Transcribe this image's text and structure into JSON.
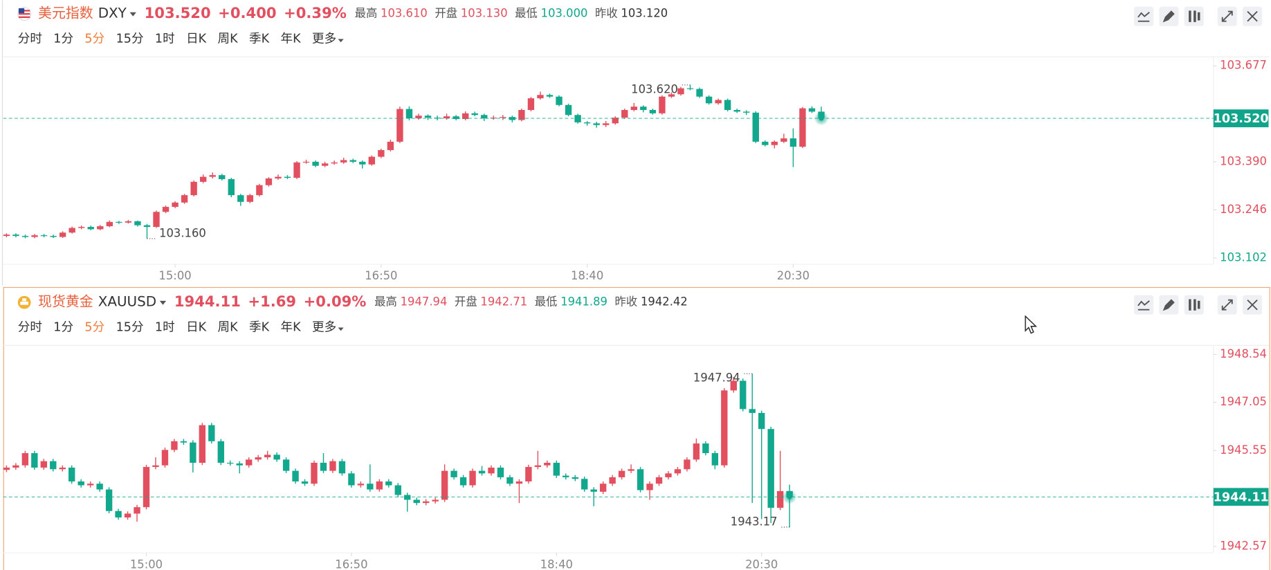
{
  "panels": [
    {
      "name": "美元指数",
      "symbol": "DXY",
      "price": "103.520",
      "change": "+0.400",
      "change_pct": "+0.39%",
      "color": "#e2505f",
      "stats": [
        {
          "label": "最高",
          "value": "103.610",
          "color": "#e2505f"
        },
        {
          "label": "开盘",
          "value": "103.130",
          "color": "#e2505f"
        },
        {
          "label": "最低",
          "value": "103.000",
          "color": "#11a88e"
        },
        {
          "label": "昨收",
          "value": "103.120",
          "color": "#333333"
        }
      ],
      "tabs": [
        "分时",
        "1分",
        "5分",
        "15分",
        "1时",
        "日K",
        "周K",
        "季K",
        "年K",
        "更多"
      ],
      "active_tab": 2
    },
    {
      "name": "现货黄金",
      "symbol": "XAUUSD",
      "price": "1944.11",
      "change": "+1.69",
      "change_pct": "+0.09%",
      "color": "#e2505f",
      "stats": [
        {
          "label": "最高",
          "value": "1947.94",
          "color": "#e2505f"
        },
        {
          "label": "开盘",
          "value": "1942.71",
          "color": "#e2505f"
        },
        {
          "label": "最低",
          "value": "1941.89",
          "color": "#11a88e"
        },
        {
          "label": "昨收",
          "value": "1942.42",
          "color": "#333333"
        }
      ],
      "tabs": [
        "分时",
        "1分",
        "5分",
        "15分",
        "1时",
        "日K",
        "周K",
        "季K",
        "年K",
        "更多"
      ],
      "active_tab": 2
    }
  ],
  "chart_data": [
    {
      "type": "candlestick",
      "up_color": "#e2505f",
      "down_color": "#11a88e",
      "xlim": [
        -0.35,
        128.7
      ],
      "ylim": [
        103.083,
        103.704
      ],
      "xticks": [
        {
          "value": 18,
          "label": "15:00"
        },
        {
          "value": 40,
          "label": "16:50"
        },
        {
          "value": 62,
          "label": "18:40"
        },
        {
          "value": 84,
          "label": "20:30"
        }
      ],
      "yticks": [
        103.102,
        103.246,
        {
          "value": 103.39,
          "label": "103.390"
        },
        103.677
      ],
      "last": {
        "value": 103.52,
        "label": "103.520"
      },
      "high_label": {
        "x": 73,
        "value": 103.62,
        "label": "103.620"
      },
      "low_label": {
        "x": 15,
        "value": 103.16,
        "label": "103.160"
      },
      "candles": [
        [
          103.168,
          103.176,
          103.164,
          103.172
        ],
        [
          103.172,
          103.176,
          103.164,
          103.168
        ],
        [
          103.168,
          103.172,
          103.161,
          103.165
        ],
        [
          103.165,
          103.174,
          103.161,
          103.17
        ],
        [
          103.17,
          103.174,
          103.164,
          103.168
        ],
        [
          103.168,
          103.172,
          103.162,
          103.165
        ],
        [
          103.165,
          103.182,
          103.162,
          103.178
        ],
        [
          103.178,
          103.196,
          103.175,
          103.192
        ],
        [
          103.192,
          103.199,
          103.188,
          103.195
        ],
        [
          103.195,
          103.199,
          103.185,
          103.188
        ],
        [
          103.188,
          103.201,
          103.185,
          103.197
        ],
        [
          103.197,
          103.214,
          103.194,
          103.21
        ],
        [
          103.21,
          103.213,
          103.204,
          103.208
        ],
        [
          103.208,
          103.216,
          103.205,
          103.212
        ],
        [
          103.212,
          103.214,
          103.196,
          103.2
        ],
        [
          103.2,
          103.204,
          103.16,
          103.195
        ],
        [
          103.195,
          103.244,
          103.192,
          103.24
        ],
        [
          103.24,
          103.259,
          103.236,
          103.255
        ],
        [
          103.255,
          103.272,
          103.251,
          103.268
        ],
        [
          103.268,
          103.294,
          103.264,
          103.29
        ],
        [
          103.29,
          103.334,
          103.286,
          103.33
        ],
        [
          103.33,
          103.352,
          103.326,
          103.345
        ],
        [
          103.345,
          103.358,
          103.34,
          103.35
        ],
        [
          103.35,
          103.354,
          103.334,
          103.338
        ],
        [
          103.338,
          103.342,
          103.284,
          103.29
        ],
        [
          103.29,
          103.294,
          103.258,
          103.27
        ],
        [
          103.27,
          103.294,
          103.266,
          103.29
        ],
        [
          103.29,
          103.324,
          103.286,
          103.32
        ],
        [
          103.32,
          103.344,
          103.316,
          103.34
        ],
        [
          103.34,
          103.352,
          103.336,
          103.345
        ],
        [
          103.345,
          103.35,
          103.338,
          103.342
        ],
        [
          103.342,
          103.392,
          103.338,
          103.388
        ],
        [
          103.388,
          103.396,
          103.384,
          103.39
        ],
        [
          103.39,
          103.394,
          103.374,
          103.378
        ],
        [
          103.378,
          103.39,
          103.374,
          103.385
        ],
        [
          103.385,
          103.394,
          103.381,
          103.388
        ],
        [
          103.388,
          103.402,
          103.384,
          103.395
        ],
        [
          103.395,
          103.399,
          103.386,
          103.39
        ],
        [
          103.39,
          103.394,
          103.37,
          103.382
        ],
        [
          103.382,
          103.409,
          103.378,
          103.405
        ],
        [
          103.405,
          103.429,
          103.401,
          103.425
        ],
        [
          103.425,
          103.456,
          103.421,
          103.45
        ],
        [
          103.45,
          103.555,
          103.446,
          103.548
        ],
        [
          103.548,
          103.556,
          103.514,
          103.52
        ],
        [
          103.52,
          103.534,
          103.516,
          103.528
        ],
        [
          103.528,
          103.532,
          103.515,
          103.522
        ],
        [
          103.522,
          103.528,
          103.514,
          103.52
        ],
        [
          103.52,
          103.534,
          103.516,
          103.526
        ],
        [
          103.526,
          103.53,
          103.514,
          103.518
        ],
        [
          103.518,
          103.541,
          103.514,
          103.535
        ],
        [
          103.535,
          103.54,
          103.526,
          103.53
        ],
        [
          103.53,
          103.534,
          103.512,
          103.52
        ],
        [
          103.52,
          103.528,
          103.516,
          103.522
        ],
        [
          103.522,
          103.53,
          103.515,
          103.524
        ],
        [
          103.524,
          103.528,
          103.508,
          103.515
        ],
        [
          103.515,
          103.549,
          103.511,
          103.545
        ],
        [
          103.545,
          103.584,
          103.541,
          103.58
        ],
        [
          103.58,
          103.6,
          103.576,
          103.59
        ],
        [
          103.59,
          103.594,
          103.581,
          103.585
        ],
        [
          103.585,
          103.589,
          103.556,
          103.56
        ],
        [
          103.56,
          103.564,
          103.526,
          103.53
        ],
        [
          103.53,
          103.534,
          103.504,
          103.508
        ],
        [
          103.508,
          103.512,
          103.498,
          103.505
        ],
        [
          103.505,
          103.51,
          103.492,
          103.5
        ],
        [
          103.5,
          103.512,
          103.494,
          103.505
        ],
        [
          103.505,
          103.526,
          103.501,
          103.522
        ],
        [
          103.522,
          103.549,
          103.518,
          103.545
        ],
        [
          103.545,
          103.566,
          103.541,
          103.555
        ],
        [
          103.555,
          103.559,
          103.538,
          103.545
        ],
        [
          103.545,
          103.549,
          103.531,
          103.535
        ],
        [
          103.535,
          103.589,
          103.531,
          103.585
        ],
        [
          103.585,
          103.598,
          103.581,
          103.592
        ],
        [
          103.592,
          103.614,
          103.588,
          103.61
        ],
        [
          103.61,
          103.62,
          103.604,
          103.608
        ],
        [
          103.608,
          103.612,
          103.581,
          103.585
        ],
        [
          103.585,
          103.589,
          103.561,
          103.565
        ],
        [
          103.565,
          103.579,
          103.561,
          103.575
        ],
        [
          103.575,
          103.579,
          103.541,
          103.545
        ],
        [
          103.545,
          103.549,
          103.536,
          103.54
        ],
        [
          103.54,
          103.544,
          103.53,
          103.537
        ],
        [
          103.537,
          103.541,
          103.446,
          103.45
        ],
        [
          103.45,
          103.454,
          103.436,
          103.44
        ],
        [
          103.44,
          103.454,
          103.43,
          103.45
        ],
        [
          103.45,
          103.474,
          103.446,
          103.46
        ],
        [
          103.46,
          103.49,
          103.374,
          103.435
        ],
        [
          103.435,
          103.554,
          103.431,
          103.55
        ],
        [
          103.55,
          103.556,
          103.536,
          103.54
        ],
        [
          103.54,
          103.555,
          103.516,
          103.52
        ]
      ]
    },
    {
      "type": "candlestick",
      "up_color": "#e2505f",
      "down_color": "#11a88e",
      "xlim": [
        -0.35,
        129.3
      ],
      "ylim": [
        1942.37,
        1948.82
      ],
      "xticks": [
        {
          "value": 15,
          "label": "15:00"
        },
        {
          "value": 37,
          "label": "16:50"
        },
        {
          "value": 59,
          "label": "18:40"
        },
        {
          "value": 81,
          "label": "20:30"
        }
      ],
      "yticks": [
        1942.57,
        1945.55,
        1947.05,
        1948.54
      ],
      "last": {
        "value": 1944.11
      },
      "high_label": {
        "x": 80,
        "value": 1947.94
      },
      "low_label": {
        "x": 84,
        "value": 1943.17
      },
      "candles": [
        [
          1944.95,
          1945.09,
          1944.88,
          1945.02
        ],
        [
          1945.02,
          1945.16,
          1944.95,
          1945.09
        ],
        [
          1945.09,
          1945.54,
          1945.02,
          1945.47
        ],
        [
          1945.47,
          1945.54,
          1944.95,
          1945.02
        ],
        [
          1945.02,
          1945.29,
          1944.95,
          1945.22
        ],
        [
          1945.22,
          1945.29,
          1944.9,
          1944.97
        ],
        [
          1944.97,
          1945.09,
          1944.9,
          1945.02
        ],
        [
          1945.02,
          1945.09,
          1944.52,
          1944.59
        ],
        [
          1944.59,
          1944.66,
          1944.4,
          1944.47
        ],
        [
          1944.47,
          1944.59,
          1944.4,
          1944.52
        ],
        [
          1944.52,
          1944.59,
          1944.27,
          1944.34
        ],
        [
          1944.34,
          1944.41,
          1943.6,
          1943.67
        ],
        [
          1943.67,
          1943.74,
          1943.4,
          1943.47
        ],
        [
          1943.47,
          1943.66,
          1943.4,
          1943.59
        ],
        [
          1943.59,
          1943.86,
          1943.34,
          1943.79
        ],
        [
          1943.79,
          1945.11,
          1943.72,
          1945.04
        ],
        [
          1945.04,
          1945.34,
          1944.97,
          1945.09
        ],
        [
          1945.09,
          1945.64,
          1945.02,
          1945.57
        ],
        [
          1945.57,
          1945.91,
          1945.5,
          1945.84
        ],
        [
          1945.84,
          1945.91,
          1945.73,
          1945.8
        ],
        [
          1945.8,
          1945.87,
          1944.87,
          1945.17
        ],
        [
          1945.17,
          1946.41,
          1945.1,
          1946.34
        ],
        [
          1946.34,
          1946.41,
          1945.77,
          1945.84
        ],
        [
          1945.84,
          1945.91,
          1945.1,
          1945.17
        ],
        [
          1945.17,
          1945.24,
          1945.08,
          1945.15
        ],
        [
          1945.15,
          1945.22,
          1944.84,
          1945.09
        ],
        [
          1945.09,
          1945.34,
          1945.02,
          1945.27
        ],
        [
          1945.27,
          1945.41,
          1945.2,
          1945.34
        ],
        [
          1945.34,
          1945.54,
          1945.27,
          1945.42
        ],
        [
          1945.42,
          1945.49,
          1945.2,
          1945.27
        ],
        [
          1945.27,
          1945.34,
          1944.85,
          1944.92
        ],
        [
          1944.92,
          1944.99,
          1944.52,
          1944.59
        ],
        [
          1944.59,
          1944.66,
          1944.45,
          1944.52
        ],
        [
          1944.52,
          1945.24,
          1944.45,
          1945.17
        ],
        [
          1945.17,
          1945.47,
          1944.85,
          1944.92
        ],
        [
          1944.92,
          1945.29,
          1944.85,
          1945.22
        ],
        [
          1945.22,
          1945.29,
          1944.77,
          1944.84
        ],
        [
          1944.84,
          1944.91,
          1944.4,
          1944.47
        ],
        [
          1944.47,
          1944.59,
          1944.4,
          1944.52
        ],
        [
          1944.52,
          1945.12,
          1944.27,
          1944.34
        ],
        [
          1944.34,
          1944.66,
          1944.27,
          1944.59
        ],
        [
          1944.59,
          1944.66,
          1944.4,
          1944.47
        ],
        [
          1944.47,
          1944.54,
          1944.1,
          1944.17
        ],
        [
          1944.17,
          1944.24,
          1943.65,
          1944.02
        ],
        [
          1944.02,
          1944.09,
          1943.85,
          1943.92
        ],
        [
          1943.92,
          1944.04,
          1943.85,
          1943.97
        ],
        [
          1943.97,
          1944.09,
          1943.9,
          1944.02
        ],
        [
          1944.02,
          1945.12,
          1943.95,
          1944.92
        ],
        [
          1944.92,
          1944.99,
          1944.65,
          1944.72
        ],
        [
          1944.72,
          1944.79,
          1944.4,
          1944.47
        ],
        [
          1944.47,
          1944.99,
          1944.4,
          1944.92
        ],
        [
          1944.92,
          1945.07,
          1944.77,
          1944.84
        ],
        [
          1944.84,
          1945.09,
          1944.77,
          1945.02
        ],
        [
          1945.02,
          1945.09,
          1944.65,
          1944.72
        ],
        [
          1944.72,
          1944.79,
          1944.45,
          1944.52
        ],
        [
          1944.52,
          1944.66,
          1943.92,
          1944.59
        ],
        [
          1944.59,
          1945.11,
          1944.52,
          1945.04
        ],
        [
          1945.04,
          1945.54,
          1944.97,
          1945.09
        ],
        [
          1945.09,
          1945.24,
          1945.02,
          1945.17
        ],
        [
          1945.17,
          1945.24,
          1944.7,
          1944.77
        ],
        [
          1944.77,
          1944.84,
          1944.65,
          1944.72
        ],
        [
          1944.72,
          1944.79,
          1944.6,
          1944.67
        ],
        [
          1944.67,
          1944.74,
          1944.27,
          1944.34
        ],
        [
          1944.34,
          1944.41,
          1943.82,
          1944.27
        ],
        [
          1944.27,
          1944.59,
          1944.2,
          1944.52
        ],
        [
          1944.52,
          1944.79,
          1944.45,
          1944.72
        ],
        [
          1944.72,
          1944.99,
          1944.65,
          1944.92
        ],
        [
          1944.92,
          1945.12,
          1944.85,
          1944.97
        ],
        [
          1944.97,
          1945.04,
          1944.25,
          1944.32
        ],
        [
          1944.32,
          1944.59,
          1944.02,
          1944.52
        ],
        [
          1944.52,
          1944.79,
          1944.45,
          1944.72
        ],
        [
          1944.72,
          1944.91,
          1944.65,
          1944.84
        ],
        [
          1944.84,
          1945.04,
          1944.77,
          1944.97
        ],
        [
          1944.97,
          1945.34,
          1944.9,
          1945.27
        ],
        [
          1945.27,
          1945.92,
          1945.2,
          1945.77
        ],
        [
          1945.77,
          1945.84,
          1945.4,
          1945.47
        ],
        [
          1945.47,
          1945.54,
          1944.97,
          1945.09
        ],
        [
          1945.09,
          1947.49,
          1945.02,
          1947.42
        ],
        [
          1947.42,
          1947.84,
          1947.35,
          1947.72
        ],
        [
          1947.72,
          1947.79,
          1946.77,
          1946.84
        ],
        [
          1946.84,
          1947.94,
          1943.92,
          1946.72
        ],
        [
          1946.72,
          1946.79,
          1943.42,
          1946.22
        ],
        [
          1946.22,
          1946.29,
          1943.3,
          1943.77
        ],
        [
          1943.77,
          1945.54,
          1943.7,
          1944.29
        ],
        [
          1944.29,
          1944.49,
          1943.17,
          1944.11
        ]
      ]
    }
  ]
}
